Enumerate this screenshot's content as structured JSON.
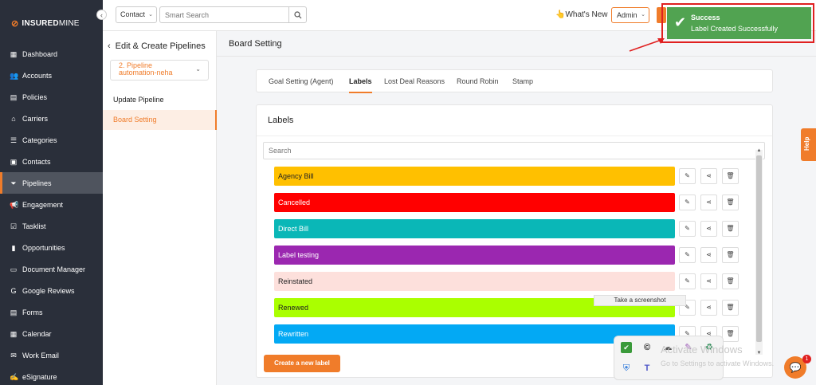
{
  "brand": {
    "logo_bold": "INSURED",
    "logo_thin": "MINE"
  },
  "sidebar": {
    "items": [
      {
        "label": "Dashboard",
        "icon": "dashboard-icon"
      },
      {
        "label": "Accounts",
        "icon": "users-icon"
      },
      {
        "label": "Policies",
        "icon": "document-icon"
      },
      {
        "label": "Carriers",
        "icon": "bank-icon"
      },
      {
        "label": "Categories",
        "icon": "list-icon"
      },
      {
        "label": "Contacts",
        "icon": "contact-icon"
      },
      {
        "label": "Pipelines",
        "icon": "filter-icon",
        "active": true
      },
      {
        "label": "Engagement",
        "icon": "megaphone-icon"
      },
      {
        "label": "Tasklist",
        "icon": "tasks-icon"
      },
      {
        "label": "Opportunities",
        "icon": "chart-icon"
      },
      {
        "label": "Document Manager",
        "icon": "folder-icon"
      },
      {
        "label": "Google Reviews",
        "icon": "google-icon"
      },
      {
        "label": "Forms",
        "icon": "form-icon"
      },
      {
        "label": "Calendar",
        "icon": "calendar-icon"
      },
      {
        "label": "Work Email",
        "icon": "email-icon"
      },
      {
        "label": "eSignature",
        "icon": "signature-icon"
      }
    ]
  },
  "topbar": {
    "contact_select": "Contact",
    "search_placeholder": "Smart Search",
    "whats_new": "What's New",
    "admin_select": "Admin"
  },
  "left_panel": {
    "title": "Edit & Create Pipelines",
    "pipeline_select_line1": "2. Pipeline",
    "pipeline_select_line2": "automation-neha",
    "items": [
      "Update Pipeline",
      "Board Setting"
    ]
  },
  "main": {
    "title": "Board Setting",
    "tabs": [
      "Goal Setting (Agent)",
      "Labels",
      "Lost Deal Reasons",
      "Round Robin",
      "Stamp"
    ],
    "active_tab": "Labels",
    "labels_heading": "Labels",
    "search_placeholder": "Search",
    "labels": [
      {
        "name": "Agency Bill",
        "color": "#ffc000",
        "text_color": "#222222"
      },
      {
        "name": "Cancelled",
        "color": "#ff0000",
        "text_color": "#ffffff"
      },
      {
        "name": "Direct Bill",
        "color": "#0ab7b7",
        "text_color": "#ffffff"
      },
      {
        "name": "Label testing",
        "color": "#9b27b0",
        "text_color": "#ffffff"
      },
      {
        "name": "Reinstated",
        "color": "#fde0dc",
        "text_color": "#222222"
      },
      {
        "name": "Renewed",
        "color": "#aaff00",
        "text_color": "#222222"
      },
      {
        "name": "Rewritten",
        "color": "#03a9f4",
        "text_color": "#ffffff"
      }
    ],
    "create_button": "Create a new label"
  },
  "toast": {
    "title": "Success",
    "message": "Label Created Successfully",
    "color": "#51a351"
  },
  "help_tab": "Help",
  "tooltip": "Take a screenshot",
  "watermark": {
    "line1": "Activate Windows",
    "line2": "Go to Settings to activate Windows."
  },
  "chat_badge": "1",
  "accent_color": "#f07c2a"
}
